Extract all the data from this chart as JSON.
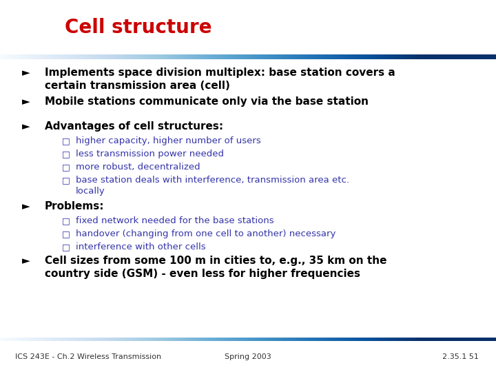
{
  "title": "Cell structure",
  "title_color": "#CC0000",
  "title_fontsize": 20,
  "background_color": "#FFFFFF",
  "bullet_color": "#000000",
  "sub_bullet_color": "#3333AA",
  "footer_left": "ICS 243E - Ch.2 Wireless Transmission",
  "footer_center": "Spring 2003",
  "footer_right": "2.35.1 51",
  "footer_fontsize": 8,
  "header_line_color": "#3333BB",
  "footer_line_color": "#3333BB",
  "items": [
    {
      "type": "bullet",
      "text": "Implements space division multiplex: base station covers a\ncertain transmission area (cell)"
    },
    {
      "type": "bullet",
      "text": "Mobile stations communicate only via the base station"
    },
    {
      "type": "gap"
    },
    {
      "type": "bullet",
      "text": "Advantages of cell structures:"
    },
    {
      "type": "sub",
      "text": "higher capacity, higher number of users"
    },
    {
      "type": "sub",
      "text": "less transmission power needed"
    },
    {
      "type": "sub",
      "text": "more robust, decentralized"
    },
    {
      "type": "sub",
      "text": "base station deals with interference, transmission area etc.\nlocally"
    },
    {
      "type": "bullet",
      "text": "Problems:"
    },
    {
      "type": "sub",
      "text": "fixed network needed for the base stations"
    },
    {
      "type": "sub",
      "text": "handover (changing from one cell to another) necessary"
    },
    {
      "type": "sub",
      "text": "interference with other cells"
    },
    {
      "type": "bullet",
      "text": "Cell sizes from some 100 m in cities to, e.g., 35 km on the\ncountry side (GSM) - even less for higher frequencies"
    }
  ]
}
